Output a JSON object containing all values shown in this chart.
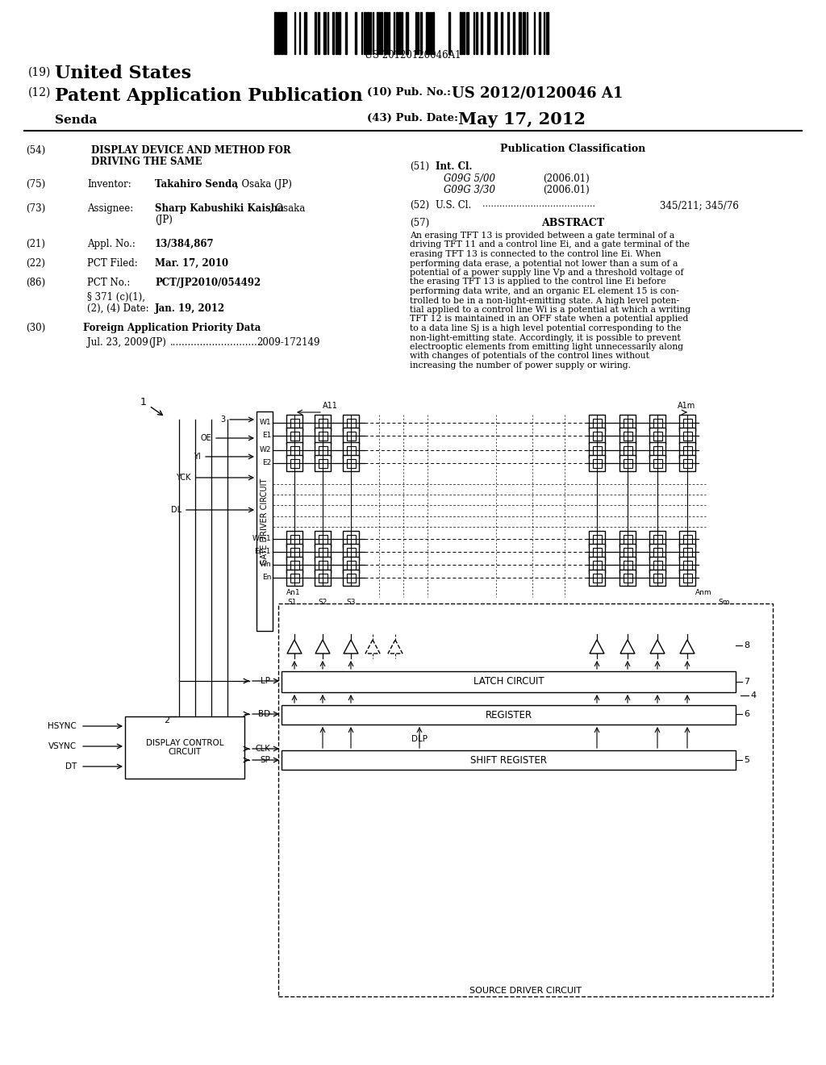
{
  "bg_color": "#ffffff",
  "barcode_text": "US 20120120046A1",
  "title_19": "(19) United States",
  "title_12": "(12) Patent Application Publication",
  "pub_no_label": "(10) Pub. No.:",
  "pub_no": "US 2012/0120046 A1",
  "inventor_name": "Senda",
  "pub_date_label": "(43) Pub. Date:",
  "pub_date": "May 17, 2012",
  "field_54_label": "(54)",
  "field_54": "DISPLAY DEVICE AND METHOD FOR\nDRIVING THE SAME",
  "pub_class_title": "Publication Classification",
  "field_51_label": "(51)",
  "int_cl": "Int. Cl.",
  "g09g_500": "G09G 5/00",
  "g09g_500_year": "(2006.01)",
  "g09g_330": "G09G 3/30",
  "g09g_330_year": "(2006.01)",
  "field_52_label": "(52)",
  "us_cl_label": "U.S. Cl.",
  "us_cl_val": "345/211; 345/76",
  "field_57_label": "(57)",
  "abstract_title": "ABSTRACT",
  "abstract_lines": [
    "An erasing TFT 13 is provided between a gate terminal of a",
    "driving TFT 11 and a control line Ei, and a gate terminal of the",
    "erasing TFT 13 is connected to the control line Ei. When",
    "performing data erase, a potential not lower than a sum of a",
    "potential of a power supply line Vp and a threshold voltage of",
    "the erasing TFT 13 is applied to the control line Ei before",
    "performing data write, and an organic EL element 15 is con-",
    "trolled to be in a non-light-emitting state. A high level poten-",
    "tial applied to a control line Wi is a potential at which a writing",
    "TFT 12 is maintained in an OFF state when a potential applied",
    "to a data line Sj is a high level potential corresponding to the",
    "non-light-emitting state. Accordingly, it is possible to prevent",
    "electrooptic elements from emitting light unnecessarily along",
    "with changes of potentials of the control lines without",
    "increasing the number of power supply or wiring."
  ],
  "inventor_label": "Inventor:",
  "inventor_val": "Takahiro Senda, Osaka (JP)",
  "assignee_label": "Assignee:",
  "assignee_val_1": "Sharp Kabushiki Kaisha, Osaka",
  "assignee_val_2": "(JP)",
  "appl_label": "Appl. No.:",
  "appl_val": "13/384,867",
  "pct_filed_label": "PCT Filed:",
  "pct_filed_val": "Mar. 17, 2010",
  "pct_no_label": "PCT No.:",
  "pct_no_val": "PCT/JP2010/054492",
  "para_371_1": "§ 371 (c)(1),",
  "para_371_2": "(2), (4) Date:",
  "para_371_val": "Jan. 19, 2012",
  "foreign_label": "Foreign Application Priority Data",
  "foreign_date": "Jul. 23, 2009",
  "foreign_country": "(JP)",
  "foreign_dots": "...............................",
  "foreign_no": "2009-172149"
}
